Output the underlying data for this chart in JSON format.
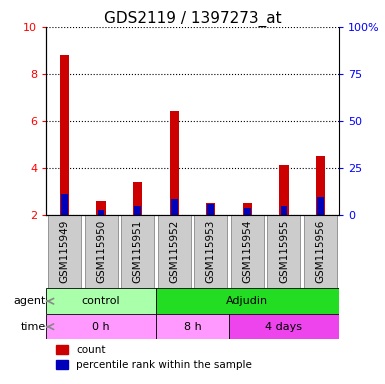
{
  "title": "GDS2119 / 1397273_at",
  "samples": [
    "GSM115949",
    "GSM115950",
    "GSM115951",
    "GSM115952",
    "GSM115953",
    "GSM115954",
    "GSM115955",
    "GSM115956"
  ],
  "red_values": [
    8.8,
    2.6,
    3.4,
    6.4,
    2.5,
    2.5,
    4.1,
    4.5
  ],
  "blue_values": [
    2.9,
    2.2,
    2.35,
    2.65,
    2.45,
    2.3,
    2.35,
    2.75
  ],
  "ylim_left": [
    2,
    10
  ],
  "ylim_right": [
    0,
    100
  ],
  "yticks_left": [
    2,
    4,
    6,
    8,
    10
  ],
  "yticks_right": [
    0,
    25,
    50,
    75,
    100
  ],
  "ytick_labels_right": [
    "0",
    "25",
    "50",
    "75",
    "100%"
  ],
  "agent_groups": [
    {
      "label": "control",
      "start": 0,
      "end": 3,
      "color": "#AAFFAA"
    },
    {
      "label": "Adjudin",
      "start": 3,
      "end": 8,
      "color": "#22DD22"
    }
  ],
  "time_groups": [
    {
      "label": "0 h",
      "start": 0,
      "end": 3,
      "color": "#FF99FF"
    },
    {
      "label": "8 h",
      "start": 3,
      "end": 5,
      "color": "#FF99FF"
    },
    {
      "label": "4 days",
      "start": 5,
      "end": 8,
      "color": "#EE44EE"
    }
  ],
  "bar_width": 0.25,
  "blue_bar_width": 0.18,
  "red_color": "#CC0000",
  "blue_color": "#0000BB",
  "legend_red": "count",
  "legend_blue": "percentile rank within the sample",
  "agent_label": "agent",
  "time_label": "time",
  "title_fontsize": 11,
  "tick_fontsize": 8,
  "sample_label_fontsize": 7.5,
  "gray_box_color": "#CCCCCC"
}
